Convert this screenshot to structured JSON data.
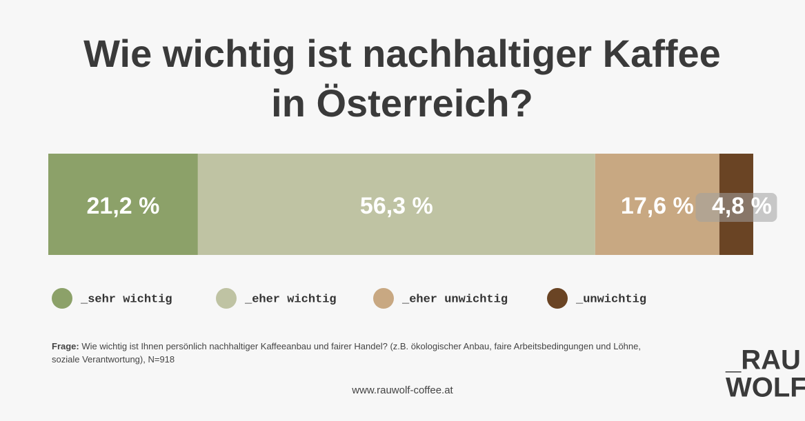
{
  "chart_data": {
    "type": "stacked-bar",
    "title": "Wie wichtig ist nachhaltiger Kaffee in Österreich?",
    "xlim": [
      0,
      100
    ],
    "series": [
      {
        "name": "_sehr wichtig",
        "color": "#8ca169",
        "values": [
          21.2
        ],
        "value_labels": [
          "21,2 %"
        ]
      },
      {
        "name": "_eher wichtig",
        "color": "#bfc3a3",
        "values": [
          56.3
        ],
        "value_labels": [
          "56,3 %"
        ]
      },
      {
        "name": "_eher unwichtig",
        "color": "#c8a882",
        "values": [
          17.6
        ],
        "value_labels": [
          "17,6 %"
        ]
      },
      {
        "name": "_unwichtig",
        "color": "#6a4424",
        "values": [
          4.8
        ],
        "value_labels": [
          "4,8 %"
        ]
      }
    ]
  },
  "footer": {
    "note_label": "Frage:",
    "note": "Wie wichtig ist Ihnen persönlich nachhaltiger Kaffeeanbau und fairer Handel? (z.B. ökologischer Anbau, faire Arbeitsbedingungen und Löhne, soziale Verantwortung), N=918",
    "website": "www.rauwolf-coffee.at",
    "logo_line1": "_RAU",
    "logo_line2": "WOLF"
  }
}
